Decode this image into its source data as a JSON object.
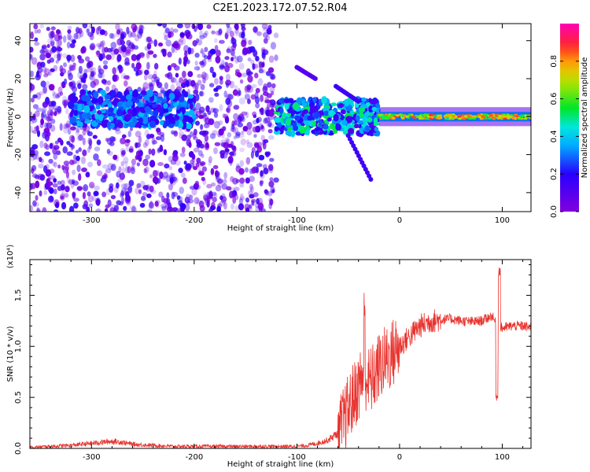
{
  "figure_title": "C2E1.2023.172.07.52.R04",
  "chart_data": [
    {
      "type": "heatmap",
      "xlabel": "Height of straight line (km)",
      "ylabel": "Frequency (Hz)",
      "xlim": [
        -360,
        128
      ],
      "ylim": [
        -50,
        49
      ],
      "x_ticks": [
        -300,
        -200,
        -100,
        0,
        100
      ],
      "y_ticks": [
        -40,
        -20,
        0,
        20,
        40
      ],
      "colorbar": {
        "label": "Normalized spectral amplitude",
        "range": [
          0.0,
          1.0
        ],
        "ticks": [
          0.0,
          0.2,
          0.4,
          0.6,
          0.8
        ],
        "colormap": "rainbow (violet-blue-cyan-green-yellow-red-magenta)",
        "position": "right"
      },
      "features": [
        {
          "kind": "noise",
          "x_range": [
            -360,
            -120
          ],
          "freq_range": [
            -50,
            49
          ],
          "amplitude": [
            0.0,
            0.2
          ]
        },
        {
          "kind": "band",
          "x_range": [
            -320,
            -200
          ],
          "freq_center": 4,
          "amplitude": [
            0.1,
            0.4
          ]
        },
        {
          "kind": "band",
          "x_range": [
            -120,
            -20
          ],
          "freq_center": 0,
          "amplitude": [
            0.1,
            0.55
          ]
        },
        {
          "kind": "streak",
          "x_range": [
            -100,
            -82
          ],
          "freq_range": [
            26,
            20
          ],
          "amplitude": 0.1
        },
        {
          "kind": "streak",
          "x_range": [
            -62,
            -40
          ],
          "freq_range": [
            16,
            8
          ],
          "amplitude": 0.15
        },
        {
          "kind": "streak",
          "x_range": [
            -50,
            -28
          ],
          "freq_range": [
            -10,
            -33
          ],
          "amplitude": 0.15
        },
        {
          "kind": "line",
          "x_range": [
            -20,
            128
          ],
          "freq_center": 0,
          "amplitude": [
            0.5,
            0.9
          ]
        }
      ]
    },
    {
      "type": "line",
      "xlabel": "Height of straight line (km)",
      "ylabel": "SNR (10 * v/v)",
      "y_multiplier": "(x10⁴)",
      "xlim": [
        -360,
        128
      ],
      "ylim": [
        0,
        1.85
      ],
      "x_ticks": [
        -300,
        -200,
        -100,
        0,
        100
      ],
      "y_ticks": [
        0.0,
        0.5,
        1.0,
        1.5
      ],
      "color": "#e8332e",
      "series": [
        {
          "x": [
            -360,
            -340,
            -320,
            -300,
            -290,
            -280,
            -270,
            -260,
            -240,
            -220,
            -200,
            -180,
            -160,
            -140,
            -120,
            -100,
            -90,
            -80,
            -70,
            -60,
            -55,
            -50,
            -45,
            -40,
            -35,
            -30,
            -25,
            -20,
            -15,
            -10,
            -5,
            0,
            5,
            10,
            15,
            20,
            25,
            30,
            35,
            40,
            50,
            60,
            70,
            80,
            90,
            95,
            100,
            110,
            120,
            128
          ],
          "y": [
            0.01,
            0.02,
            0.03,
            0.05,
            0.06,
            0.07,
            0.06,
            0.04,
            0.03,
            0.02,
            0.02,
            0.02,
            0.02,
            0.02,
            0.02,
            0.02,
            0.03,
            0.05,
            0.08,
            0.15,
            0.25,
            0.38,
            0.5,
            0.6,
            0.75,
            0.65,
            0.7,
            0.8,
            0.85,
            0.9,
            0.95,
            1.0,
            1.05,
            1.1,
            1.15,
            1.2,
            1.22,
            1.25,
            1.25,
            1.26,
            1.27,
            1.25,
            1.24,
            1.25,
            1.3,
            1.2,
            1.18,
            1.2,
            1.2,
            1.18
          ]
        }
      ]
    }
  ]
}
